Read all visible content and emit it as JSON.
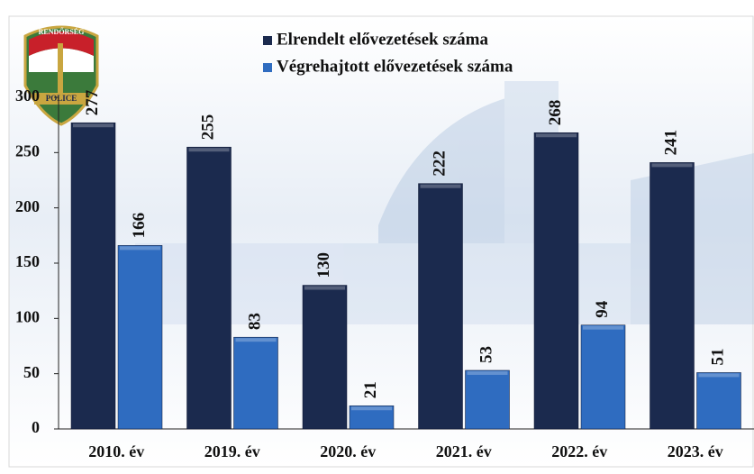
{
  "chart_data": {
    "type": "bar",
    "logo_texts": [
      "RENDŐRSÉG",
      "POLICE"
    ],
    "categories": [
      "2010. év",
      "2019. év",
      "2020. év",
      "2021. év",
      "2022. év",
      "2023. év"
    ],
    "series": [
      {
        "name": "Elrendelt elővezetések száma",
        "color": "#1b2a4e",
        "values": [
          277,
          255,
          130,
          222,
          268,
          241
        ]
      },
      {
        "name": "Végrehajtott elővezetések száma",
        "color": "#2f6cc0",
        "values": [
          166,
          83,
          21,
          53,
          94,
          51
        ]
      }
    ],
    "ylim": [
      0,
      300
    ],
    "yticks": [
      0,
      50,
      100,
      150,
      200,
      250,
      300
    ],
    "grid": false,
    "data_labels": true
  }
}
